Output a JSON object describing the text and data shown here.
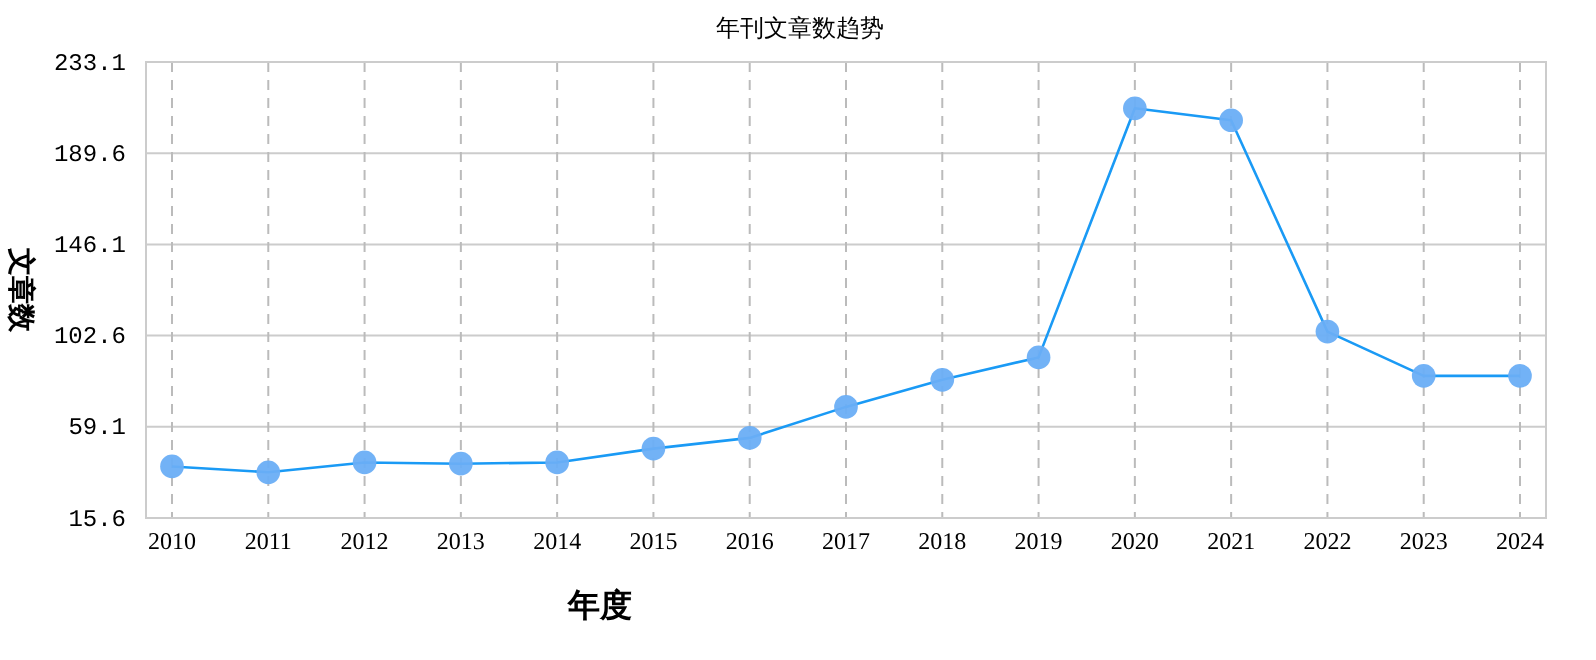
{
  "chart_data": {
    "type": "line",
    "title": "年刊文章数趋势",
    "xlabel": "年度",
    "ylabel": "文章数",
    "categories": [
      "2010",
      "2011",
      "2012",
      "2013",
      "2014",
      "2015",
      "2016",
      "2017",
      "2018",
      "2019",
      "2020",
      "2021",
      "2022",
      "2023",
      "2024"
    ],
    "series": [
      {
        "color": "#1a9af5",
        "values": [
          40.2,
          37.4,
          42.1,
          41.5,
          42.1,
          48.7,
          53.8,
          68.6,
          81.5,
          92.2,
          211,
          205.3,
          104.5,
          83.4,
          83.4
        ]
      }
    ],
    "ylim": [
      15.6,
      233.1
    ],
    "yticks": [
      15.6,
      59.1,
      102.6,
      146.1,
      189.6,
      233.1
    ],
    "grid": true,
    "marker": "circle"
  }
}
